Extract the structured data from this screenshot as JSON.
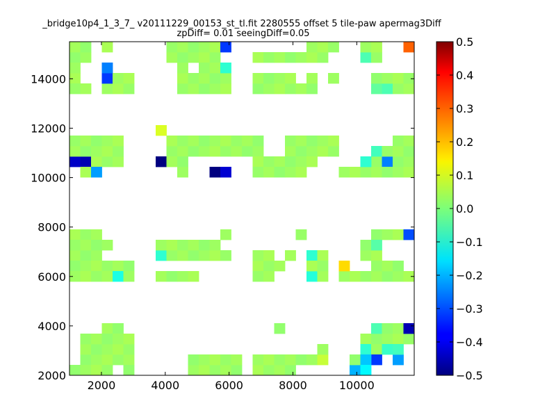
{
  "chart_data": {
    "type": "heatmap",
    "title": "_bridge10p4_1_3_7_ v20111229_00153_st_tl.fit 2280555 offset 5 tile-paw apermag3Diff",
    "subtitle": "zpDiff= 0.01 seeingDiff=0.05",
    "xlim": [
      1000,
      11800
    ],
    "ylim": [
      2000,
      15500
    ],
    "x_ticks": [
      "2000",
      "4000",
      "6000",
      "8000",
      "10000"
    ],
    "y_ticks": [
      "2000",
      "4000",
      "6000",
      "8000",
      "10000",
      "12000",
      "14000"
    ],
    "colorbar": {
      "min": -0.5,
      "max": 0.5,
      "colormap": "jet",
      "ticks": [
        "0.5",
        "0.4",
        "0.3",
        "0.2",
        "0.1",
        "0.0",
        "−0.1",
        "−0.2",
        "−0.3",
        "−0.4",
        "−0.5"
      ]
    },
    "cell_size": [
      337.5,
      421.875
    ],
    "default_value": 0.03,
    "filled_ranges": [
      [
        1000,
        1675,
        14650,
        15500
      ],
      [
        2012,
        2350,
        15078,
        15500
      ],
      [
        4037,
        5725,
        14650,
        15500
      ],
      [
        5725,
        6062,
        15078,
        15500
      ],
      [
        6738,
        8425,
        14650,
        15072
      ],
      [
        8425,
        9100,
        14650,
        15500
      ],
      [
        10112,
        10787,
        14650,
        15500
      ],
      [
        11462,
        11800,
        15078,
        15500
      ],
      [
        1000,
        1337,
        13800,
        14650
      ],
      [
        2012,
        2012,
        0,
        0
      ],
      [
        2012,
        3025,
        13375,
        14228
      ],
      [
        4375,
        6062,
        13375,
        14650
      ],
      [
        6738,
        8762,
        13375,
        14228
      ],
      [
        9100,
        9437,
        13800,
        14228
      ],
      [
        10450,
        11800,
        13375,
        14228
      ],
      [
        1000,
        1675,
        13375,
        13800
      ],
      [
        3700,
        4037,
        11700,
        12120
      ],
      [
        4037,
        7075,
        10850,
        11700
      ],
      [
        3700,
        4712,
        10425,
        10850
      ],
      [
        1000,
        2687,
        10425,
        11700
      ],
      [
        7750,
        9437,
        10850,
        11700
      ],
      [
        6738,
        8762,
        10425,
        10850
      ],
      [
        10450,
        11800,
        10425,
        11280
      ],
      [
        11125,
        11800,
        10850,
        11700
      ],
      [
        9437,
        11800,
        10000,
        10425
      ],
      [
        1337,
        2012,
        10000,
        10425
      ],
      [
        4375,
        4712,
        10000,
        10425
      ],
      [
        6738,
        8425,
        10000,
        10425
      ],
      [
        1000,
        2012,
        7500,
        7925
      ],
      [
        1000,
        2350,
        6650,
        7500
      ],
      [
        1000,
        3025,
        6225,
        6650
      ],
      [
        1000,
        3025,
        5800,
        6225
      ],
      [
        3700,
        4712,
        6650,
        7500
      ],
      [
        3700,
        5050,
        5800,
        6225
      ],
      [
        4375,
        6062,
        6650,
        7500
      ],
      [
        5725,
        6062,
        7500,
        7925
      ],
      [
        6738,
        7750,
        6225,
        7072
      ],
      [
        6738,
        7412,
        5800,
        6225
      ],
      [
        7750,
        9100,
        6650,
        7072
      ],
      [
        8425,
        9100,
        5800,
        6650
      ],
      [
        8087,
        8425,
        7500,
        7925
      ],
      [
        10112,
        10787,
        6650,
        7500
      ],
      [
        10450,
        11800,
        7500,
        7925
      ],
      [
        9437,
        11800,
        5800,
        6225
      ],
      [
        10450,
        11462,
        6225,
        6650
      ],
      [
        2012,
        2687,
        3825,
        4250
      ],
      [
        1337,
        3025,
        2550,
        3825
      ],
      [
        1000,
        2012,
        2125,
        2550
      ],
      [
        2012,
        3025,
        2125,
        2975
      ],
      [
        4712,
        6400,
        2125,
        2975
      ],
      [
        6738,
        7750,
        2125,
        2975
      ],
      [
        7412,
        8087,
        2125,
        2550
      ],
      [
        7750,
        9100,
        2550,
        2975
      ],
      [
        8762,
        9100,
        2975,
        3400
      ],
      [
        7412,
        7750,
        3825,
        4250
      ],
      [
        10112,
        11800,
        3400,
        4250
      ],
      [
        10112,
        11462,
        2975,
        3400
      ],
      [
        9775,
        10112,
        2125,
        2975
      ],
      [
        11125,
        11462,
        2550,
        2975
      ]
    ],
    "empty_ranges": [
      [
        1337,
        1675,
        13800,
        14650
      ],
      [
        2687,
        3025,
        14228,
        14650
      ],
      [
        4712,
        5050,
        14228,
        14650
      ],
      [
        6062,
        6738,
        14650,
        15500
      ],
      [
        8087,
        8425,
        13800,
        14228
      ],
      [
        9437,
        10112,
        13375,
        14650
      ],
      [
        10787,
        11125,
        14228,
        14650
      ],
      [
        5050,
        5725,
        10000,
        10425
      ],
      [
        6062,
        6400,
        10425,
        10850
      ],
      [
        5725,
        6062,
        7072,
        7500
      ],
      [
        6400,
        6738,
        6650,
        7925
      ],
      [
        2012,
        2350,
        6650,
        7072
      ],
      [
        7412,
        7750,
        6650,
        7072
      ],
      [
        8087,
        8425,
        6650,
        7072
      ],
      [
        8762,
        9100,
        7072,
        7500
      ],
      [
        10450,
        10787,
        7072,
        7500
      ],
      [
        11125,
        11800,
        7072,
        7500
      ],
      [
        2350,
        2687,
        2125,
        2550
      ],
      [
        8087,
        8425,
        2975,
        3400
      ],
      [
        10112,
        10450,
        3825,
        4250
      ],
      [
        11125,
        11462,
        2975,
        3400
      ],
      [
        6400,
        6738,
        2125,
        2975
      ]
    ],
    "special_cells": [
      {
        "x": 2012,
        "y": 14228,
        "value": -0.25
      },
      {
        "x": 2012,
        "y": 13800,
        "value": -0.32
      },
      {
        "x": 5725,
        "y": 15078,
        "value": -0.32
      },
      {
        "x": 5725,
        "y": 14228,
        "value": -0.08
      },
      {
        "x": 11462,
        "y": 15078,
        "value": 0.28
      },
      {
        "x": 9100,
        "y": 15078,
        "value": 0.03
      },
      {
        "x": 10112,
        "y": 14650,
        "value": -0.05
      },
      {
        "x": 10450,
        "y": 13375,
        "value": -0.03
      },
      {
        "x": 10787,
        "y": 13375,
        "value": -0.05
      },
      {
        "x": 1000,
        "y": 10425,
        "value": -0.43
      },
      {
        "x": 1337,
        "y": 10425,
        "value": -0.45
      },
      {
        "x": 3700,
        "y": 10425,
        "value": -0.5
      },
      {
        "x": 5387,
        "y": 10000,
        "value": -0.5
      },
      {
        "x": 5725,
        "y": 10000,
        "value": -0.42
      },
      {
        "x": 1675,
        "y": 10000,
        "value": -0.22
      },
      {
        "x": 10112,
        "y": 10425,
        "value": -0.08
      },
      {
        "x": 10787,
        "y": 10425,
        "value": -0.25
      },
      {
        "x": 10450,
        "y": 10850,
        "value": -0.06
      },
      {
        "x": 3700,
        "y": 11700,
        "value": 0.09
      },
      {
        "x": 11462,
        "y": 7500,
        "value": -0.3
      },
      {
        "x": 2350,
        "y": 5800,
        "value": -0.1
      },
      {
        "x": 3700,
        "y": 6650,
        "value": -0.08
      },
      {
        "x": 8425,
        "y": 6650,
        "value": -0.08
      },
      {
        "x": 8425,
        "y": 5800,
        "value": -0.09
      },
      {
        "x": 9437,
        "y": 6225,
        "value": 0.16
      },
      {
        "x": 10450,
        "y": 7072,
        "value": -0.04
      },
      {
        "x": 11462,
        "y": 3825,
        "value": -0.45
      },
      {
        "x": 10450,
        "y": 3825,
        "value": -0.05
      },
      {
        "x": 10450,
        "y": 2550,
        "value": -0.32
      },
      {
        "x": 10112,
        "y": 2550,
        "value": -0.18
      },
      {
        "x": 9775,
        "y": 2125,
        "value": -0.2
      },
      {
        "x": 10112,
        "y": 2125,
        "value": -0.13
      },
      {
        "x": 11125,
        "y": 2550,
        "value": -0.22
      },
      {
        "x": 8762,
        "y": 2550,
        "value": 0.07
      },
      {
        "x": 10112,
        "y": 2975,
        "value": -0.08
      },
      {
        "x": 10787,
        "y": 2975,
        "value": -0.07
      },
      {
        "x": 11125,
        "y": 2975,
        "value": -0.06
      }
    ]
  }
}
